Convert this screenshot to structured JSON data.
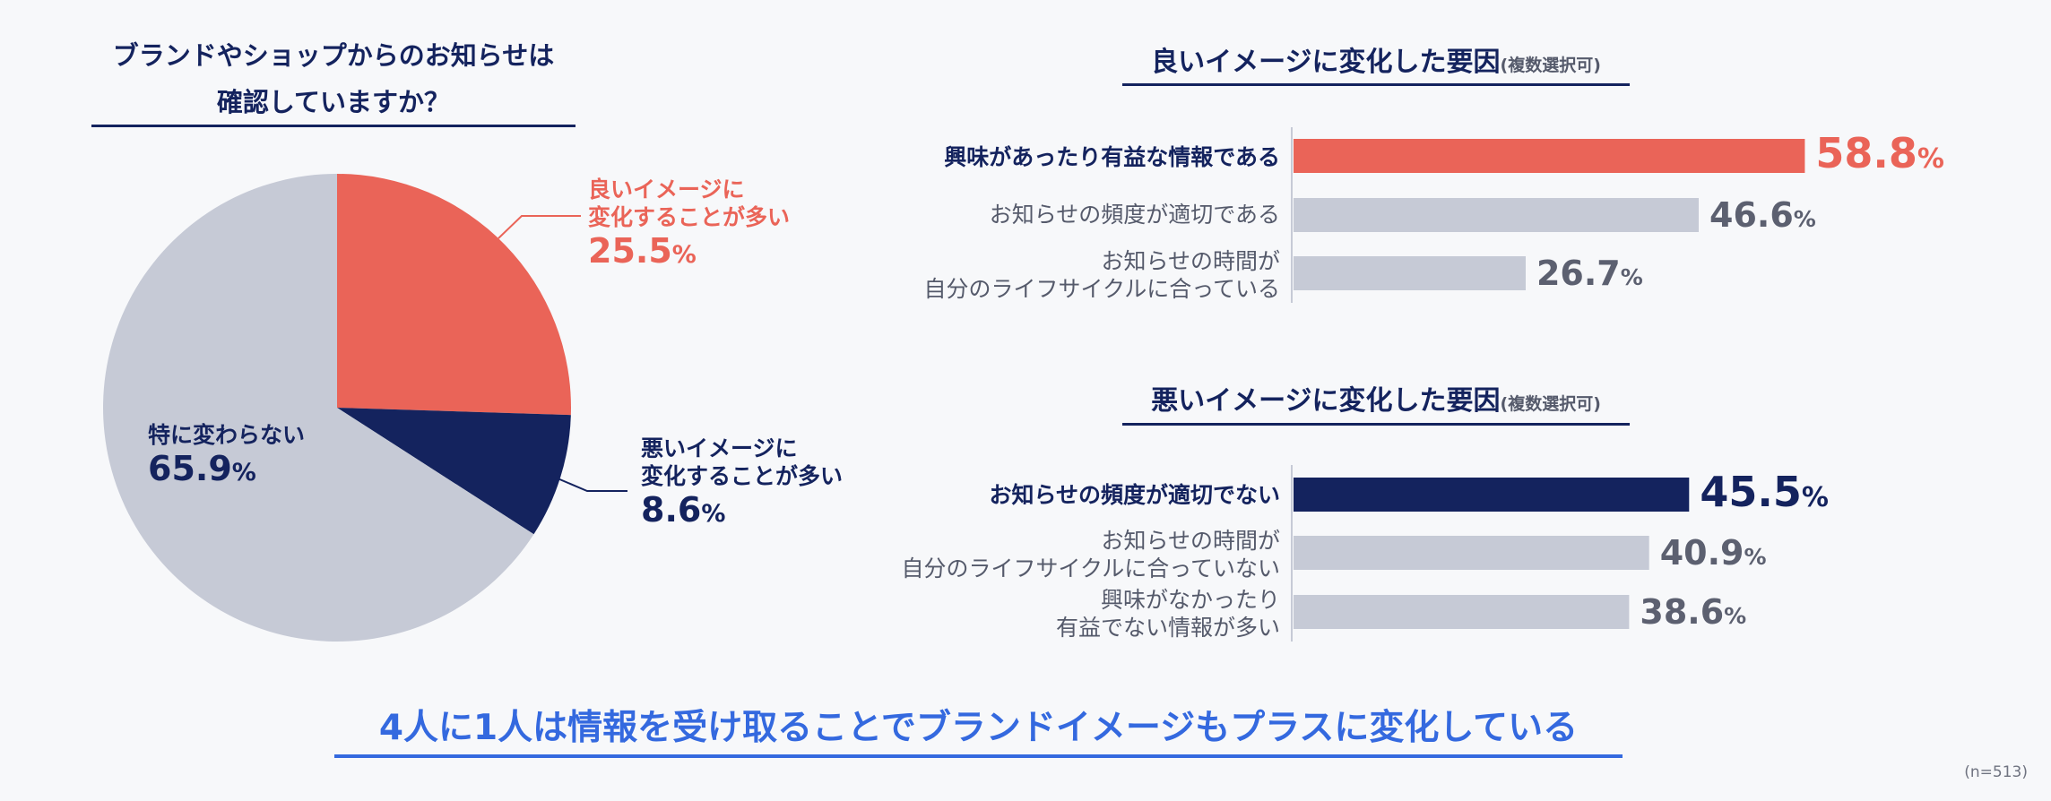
{
  "colors": {
    "navy": "#14235e",
    "red": "#ea6458",
    "gray": "#c6cad6",
    "blue": "#3469df",
    "text_gray": "#555a6b"
  },
  "pie": {
    "title_line1": "ブランドやショップからのお知らせは",
    "title_line2": "確認していますか？",
    "slices": [
      {
        "label_line1": "良いイメージに",
        "label_line2": "変化することが多い",
        "value_text": "25.5",
        "unit": "%",
        "color": "#ea6458"
      },
      {
        "label_line1": "悪いイメージに",
        "label_line2": "変化することが多い",
        "value_text": "8.6",
        "unit": "%",
        "color": "#14235e"
      },
      {
        "label_line1": "特に変わらない",
        "value_text": "65.9",
        "unit": "%",
        "color": "#c6cad6"
      }
    ]
  },
  "good_chart": {
    "title": "良いイメージに変化した要因",
    "note": "(複数選択可)",
    "items": [
      {
        "line1": "興味があったり有益な情報である",
        "value_text": "58.8",
        "unit": "%"
      },
      {
        "line1": "お知らせの頻度が適切である",
        "value_text": "46.6",
        "unit": "%"
      },
      {
        "line1": "お知らせの時間が",
        "line2": "自分のライフサイクルに合っている",
        "value_text": "26.7",
        "unit": "%"
      }
    ]
  },
  "bad_chart": {
    "title": "悪いイメージに変化した要因",
    "note": "(複数選択可)",
    "items": [
      {
        "line1": "お知らせの頻度が適切でない",
        "value_text": "45.5",
        "unit": "%"
      },
      {
        "line1": "お知らせの時間が",
        "line2": "自分のライフサイクルに合っていない",
        "value_text": "40.9",
        "unit": "%"
      },
      {
        "line1": "興味がなかったり",
        "line2": "有益でない情報が多い",
        "value_text": "38.6",
        "unit": "%"
      }
    ]
  },
  "conclusion": "4人に1人は情報を受け取ることでブランドイメージもプラスに変化している",
  "sample_note": "(n=513)",
  "chart_data": [
    {
      "type": "pie",
      "title": "ブランドやショップからのお知らせは確認していますか？",
      "categories": [
        "良いイメージに変化することが多い",
        "悪いイメージに変化することが多い",
        "特に変わらない"
      ],
      "values": [
        25.5,
        8.6,
        65.9
      ]
    },
    {
      "type": "bar",
      "title": "良いイメージに変化した要因(複数選択可)",
      "categories": [
        "興味があったり有益な情報である",
        "お知らせの頻度が適切である",
        "お知らせの時間が自分のライフサイクルに合っている"
      ],
      "values": [
        58.8,
        46.6,
        26.7
      ]
    },
    {
      "type": "bar",
      "title": "悪いイメージに変化した要因(複数選択可)",
      "categories": [
        "お知らせの頻度が適切でない",
        "お知らせの時間が自分のライフサイクルに合っていない",
        "興味がなかったり有益でない情報が多い"
      ],
      "values": [
        45.5,
        40.9,
        38.6
      ]
    }
  ]
}
